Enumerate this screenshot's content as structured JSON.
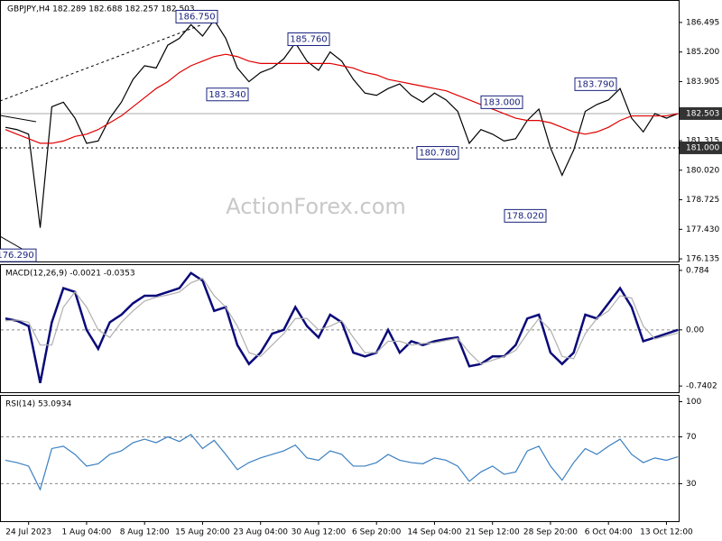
{
  "watermark": "ActionForex.com",
  "chart_data": [
    {
      "type": "line",
      "title": "GBPJPY,H4  182.289 182.688 182.257 182.503",
      "ylim": [
        176.02,
        187.44
      ],
      "yticks": [
        {
          "value": 186.495,
          "label": "186.495"
        },
        {
          "value": 185.2,
          "label": "185.200"
        },
        {
          "value": 183.905,
          "label": "183.905"
        },
        {
          "value": 181.315,
          "label": "181.315"
        },
        {
          "value": 180.02,
          "label": "180.020"
        },
        {
          "value": 178.725,
          "label": "178.725"
        },
        {
          "value": 177.43,
          "label": "177.430"
        },
        {
          "value": 176.135,
          "label": "176.135"
        }
      ],
      "price_markers": [
        {
          "value": 182.503,
          "label": "182.503"
        },
        {
          "value": 181.0,
          "label": "181.000"
        }
      ],
      "annotations": [
        {
          "value": 186.75,
          "label": "186.750"
        },
        {
          "value": 185.76,
          "label": "185.760"
        },
        {
          "value": 183.34,
          "label": "183.340"
        },
        {
          "value": 183.0,
          "label": "183.000"
        },
        {
          "value": 180.78,
          "label": "180.780"
        },
        {
          "value": 183.79,
          "label": "183.790"
        },
        {
          "value": 178.02,
          "label": "178.020"
        },
        {
          "value": 176.29,
          "label": "176.290"
        }
      ],
      "series": [
        {
          "color": "#000000",
          "values": [
            181.9,
            181.8,
            181.6,
            177.5,
            182.8,
            183.0,
            182.3,
            181.2,
            181.3,
            182.3,
            183.0,
            184.0,
            184.6,
            184.5,
            185.5,
            185.8,
            186.4,
            185.9,
            186.6,
            185.8,
            184.5,
            183.9,
            184.3,
            184.5,
            184.9,
            185.6,
            184.8,
            184.4,
            185.2,
            184.8,
            184.0,
            183.4,
            183.3,
            183.6,
            183.8,
            183.3,
            183.0,
            183.4,
            183.1,
            182.6,
            181.2,
            181.8,
            181.6,
            181.3,
            181.4,
            182.2,
            182.7,
            181.0,
            179.8,
            180.9,
            182.6,
            182.9,
            183.1,
            183.6,
            182.3,
            181.7,
            182.5,
            182.3,
            182.5
          ]
        },
        {
          "color": "#e00000",
          "values": [
            181.8,
            181.6,
            181.4,
            181.2,
            181.2,
            181.3,
            181.5,
            181.6,
            181.8,
            182.1,
            182.4,
            182.8,
            183.2,
            183.6,
            183.9,
            184.3,
            184.6,
            184.8,
            185.0,
            185.1,
            185.0,
            184.8,
            184.7,
            184.7,
            184.7,
            184.7,
            184.7,
            184.7,
            184.7,
            184.6,
            184.5,
            184.3,
            184.2,
            184.0,
            183.9,
            183.8,
            183.7,
            183.6,
            183.5,
            183.3,
            183.1,
            182.9,
            182.7,
            182.5,
            182.3,
            182.2,
            182.2,
            182.1,
            181.9,
            181.7,
            181.6,
            181.7,
            181.9,
            182.2,
            182.4,
            182.4,
            182.4,
            182.4,
            182.5
          ]
        }
      ]
    },
    {
      "type": "line",
      "title": "MACD(12,26,9) -0.0021 -0.0353",
      "ylim": [
        -0.822,
        0.854
      ],
      "yticks": [
        0.784,
        {
          "value": 0,
          "label": "0.00"
        },
        -0.7402
      ],
      "levels": [
        0
      ],
      "series": [
        {
          "color": "#0a0a7a",
          "values": [
            0.15,
            0.12,
            0.05,
            -0.7,
            0.1,
            0.55,
            0.5,
            0.0,
            -0.25,
            0.1,
            0.2,
            0.35,
            0.45,
            0.45,
            0.5,
            0.55,
            0.75,
            0.65,
            0.25,
            0.3,
            -0.2,
            -0.45,
            -0.3,
            -0.05,
            0.0,
            0.3,
            0.05,
            -0.1,
            0.2,
            0.1,
            -0.3,
            -0.35,
            -0.3,
            0.0,
            -0.3,
            -0.15,
            -0.2,
            -0.15,
            -0.12,
            -0.1,
            -0.48,
            -0.45,
            -0.35,
            -0.35,
            -0.2,
            0.15,
            0.2,
            -0.3,
            -0.45,
            -0.3,
            0.2,
            0.15,
            0.35,
            0.55,
            0.3,
            -0.15,
            -0.1,
            -0.05,
            0.0
          ]
        },
        {
          "color": "#b0b0b0",
          "values": [
            0.12,
            0.13,
            0.1,
            -0.2,
            -0.2,
            0.3,
            0.5,
            0.3,
            0.0,
            -0.1,
            0.1,
            0.25,
            0.38,
            0.43,
            0.46,
            0.5,
            0.62,
            0.68,
            0.45,
            0.3,
            0.05,
            -0.3,
            -0.35,
            -0.2,
            -0.05,
            0.15,
            0.15,
            0.0,
            0.05,
            0.12,
            -0.1,
            -0.3,
            -0.3,
            -0.15,
            -0.15,
            -0.2,
            -0.18,
            -0.17,
            -0.14,
            -0.11,
            -0.3,
            -0.45,
            -0.4,
            -0.35,
            -0.27,
            -0.05,
            0.15,
            0.0,
            -0.35,
            -0.38,
            -0.05,
            0.15,
            0.25,
            0.45,
            0.42,
            0.05,
            -0.12,
            -0.08,
            -0.04
          ]
        }
      ]
    },
    {
      "type": "line",
      "title": "RSI(14) 53.0934",
      "ylim": [
        -2,
        105
      ],
      "yticks": [
        100,
        70,
        30
      ],
      "levels": [
        70,
        30
      ],
      "categories": [
        null,
        null,
        "24 Jul 2023",
        null,
        null,
        null,
        null,
        "1 Aug 04:00",
        null,
        null,
        null,
        null,
        "8 Aug 12:00",
        null,
        null,
        null,
        null,
        "15 Aug 20:00",
        null,
        null,
        null,
        null,
        "23 Aug 04:00",
        null,
        null,
        null,
        null,
        "30 Aug 12:00",
        null,
        null,
        null,
        null,
        "6 Sep 20:00",
        null,
        null,
        null,
        null,
        "14 Sep 04:00",
        null,
        null,
        null,
        null,
        "21 Sep 12:00",
        null,
        null,
        null,
        null,
        "28 Sep 20:00",
        null,
        null,
        null,
        null,
        "6 Oct 04:00",
        null,
        null,
        null,
        null,
        "13 Oct 12:00",
        null
      ],
      "series": [
        {
          "color": "#3a7fc1",
          "values": [
            50,
            48,
            45,
            25,
            60,
            62,
            55,
            45,
            47,
            55,
            58,
            65,
            68,
            65,
            70,
            66,
            72,
            60,
            67,
            55,
            42,
            48,
            52,
            55,
            58,
            63,
            52,
            50,
            58,
            55,
            45,
            45,
            48,
            55,
            50,
            48,
            47,
            52,
            50,
            45,
            32,
            40,
            45,
            38,
            40,
            58,
            62,
            45,
            33,
            48,
            60,
            55,
            62,
            68,
            55,
            48,
            52,
            50,
            53
          ]
        }
      ]
    }
  ]
}
